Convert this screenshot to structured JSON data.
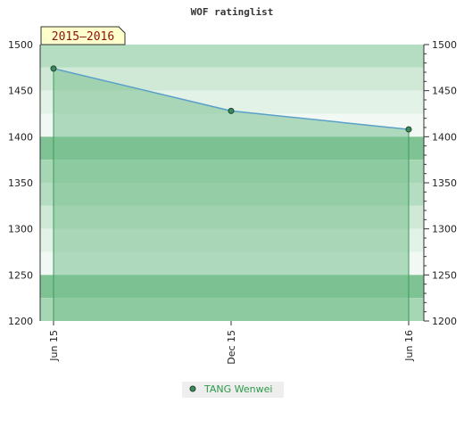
{
  "chart_data": {
    "type": "area",
    "title": "WOF ratinglist",
    "season_label": "2015–2016",
    "xlabel": "",
    "ylabel": "",
    "categories": [
      "Jun 15",
      "Dec 15",
      "Jun 16"
    ],
    "ylim": [
      1200,
      1500
    ],
    "y_ticks": [
      1200,
      1250,
      1300,
      1350,
      1400,
      1450,
      1500
    ],
    "series": [
      {
        "name": "TANG Wenwei",
        "values": [
          1474,
          1428,
          1408
        ]
      }
    ],
    "grid": true,
    "legend": "bottom-center",
    "colors": {
      "line": "#5aa0c8",
      "area": "#78c090",
      "marker": "#3a8a5a",
      "legend_text": "#2e9a4a",
      "season_bg": "#ffffcc"
    }
  }
}
